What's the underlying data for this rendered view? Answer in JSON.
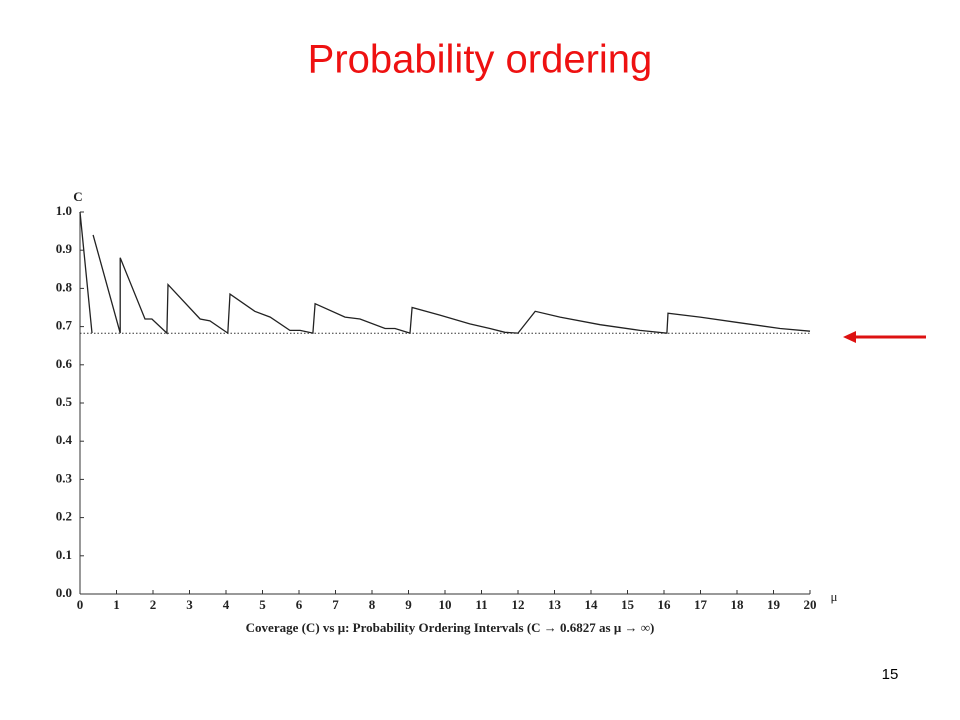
{
  "title": "Probability ordering",
  "page_number": "15",
  "chart_data": {
    "type": "line",
    "caption": "Coverage (C) vs μ:  Probability Ordering Intervals      (C → 0.6827 as μ → ∞)",
    "xlabel": "μ",
    "ylabel": "C",
    "x": [
      0,
      0.33,
      0.33,
      0.36,
      1.1,
      1.1,
      1.78,
      1.97,
      2.38,
      2.41,
      3.29,
      3.56,
      4.05,
      4.11,
      4.79,
      5.21,
      5.75,
      6.03,
      6.38,
      6.44,
      7.26,
      7.67,
      8.36,
      8.63,
      9.04,
      9.1,
      9.86,
      10.68,
      11.23,
      11.64,
      12.0,
      12.47,
      13.15,
      14.25,
      15.34,
      16.08,
      16.11,
      16.99,
      18.08,
      19.18,
      20
    ],
    "series": [
      {
        "color": "#222222",
        "values": [
          1.0,
          0.683,
          null,
          0.94,
          0.683,
          0.88,
          0.72,
          0.72,
          0.683,
          0.81,
          0.72,
          0.715,
          0.683,
          0.785,
          0.74,
          0.725,
          0.69,
          0.69,
          0.683,
          0.76,
          0.725,
          0.72,
          0.695,
          0.695,
          0.683,
          0.75,
          0.73,
          0.707,
          0.695,
          0.685,
          0.683,
          0.74,
          0.725,
          0.705,
          0.69,
          0.683,
          0.735,
          0.725,
          0.71,
          0.695,
          0.688
        ]
      }
    ],
    "hline": 0.6827,
    "xlim": [
      0,
      20
    ],
    "xticks": [
      0,
      1,
      2,
      3,
      4,
      5,
      6,
      7,
      8,
      9,
      10,
      11,
      12,
      13,
      14,
      15,
      16,
      17,
      18,
      19,
      20
    ],
    "ylim": [
      0,
      1
    ],
    "yticks": [
      {
        "value": 0,
        "label": "0.0"
      },
      0.1,
      0.2,
      0.3,
      0.4,
      0.5,
      0.6,
      0.7,
      0.8,
      0.9,
      {
        "value": 1,
        "label": "1.0"
      }
    ]
  }
}
